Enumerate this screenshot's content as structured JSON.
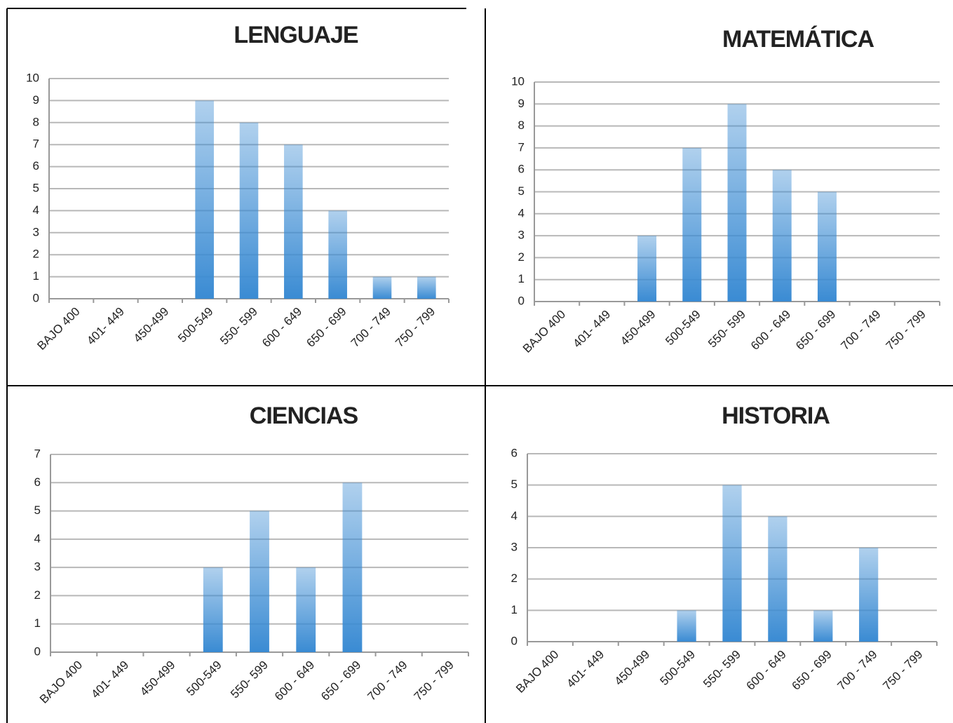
{
  "chart_data": [
    {
      "type": "bar",
      "title": "LENGUAJE",
      "categories": [
        "BAJO 400",
        "401- 449",
        "450-499",
        "500-549",
        "550- 599",
        "600 - 649",
        "650 - 699",
        "700 - 749",
        "750 - 799"
      ],
      "values": [
        0,
        0,
        0,
        9,
        8,
        7,
        4,
        1,
        1
      ],
      "color": "#3a8bd3",
      "ylim": [
        0,
        10
      ],
      "yticks": [
        0,
        1,
        2,
        3,
        4,
        5,
        6,
        7,
        8,
        9,
        10
      ],
      "grid": true
    },
    {
      "type": "bar",
      "title": "MATEMÁTICA",
      "categories": [
        "BAJO 400",
        "401- 449",
        "450-499",
        "500-549",
        "550- 599",
        "600 - 649",
        "650 - 699",
        "700 - 749",
        "750 - 799"
      ],
      "values": [
        0,
        0,
        3,
        7,
        9,
        6,
        5,
        0,
        0
      ],
      "color": "#3a8bd3",
      "ylim": [
        0,
        10
      ],
      "yticks": [
        0,
        1,
        2,
        3,
        4,
        5,
        6,
        7,
        8,
        9,
        10
      ],
      "grid": true
    },
    {
      "type": "bar",
      "title": "CIENCIAS",
      "categories": [
        "BAJO 400",
        "401- 449",
        "450-499",
        "500-549",
        "550- 599",
        "600 - 649",
        "650 - 699",
        "700 - 749",
        "750 - 799"
      ],
      "values": [
        0,
        0,
        0,
        3,
        5,
        3,
        6,
        0,
        0
      ],
      "color": "#3a8bd3",
      "ylim": [
        0,
        7
      ],
      "yticks": [
        0,
        1,
        2,
        3,
        4,
        5,
        6,
        7
      ],
      "grid": true
    },
    {
      "type": "bar",
      "title": "HISTORIA",
      "categories": [
        "BAJO 400",
        "401- 449",
        "450-499",
        "500-549",
        "550- 599",
        "600 - 649",
        "650 - 699",
        "700 - 749",
        "750 - 799"
      ],
      "values": [
        0,
        0,
        0,
        1,
        5,
        4,
        1,
        3,
        0
      ],
      "color": "#3a8bd3",
      "ylim": [
        0,
        6
      ],
      "yticks": [
        0,
        1,
        2,
        3,
        4,
        5,
        6
      ],
      "grid": true
    }
  ]
}
